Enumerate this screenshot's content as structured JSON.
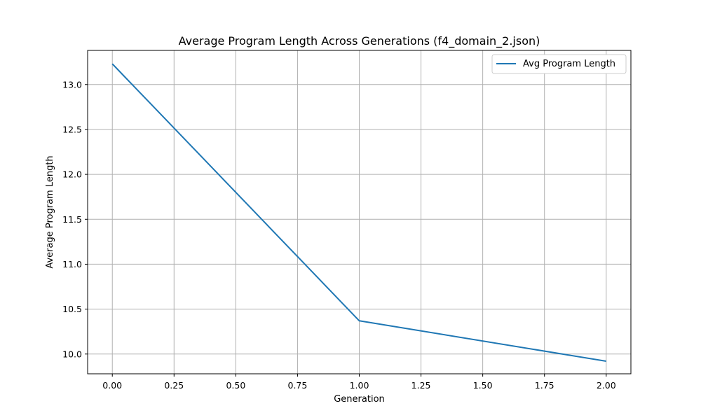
{
  "chart_data": {
    "type": "line",
    "title": "Average Program Length Across Generations (f4_domain_2.json)",
    "xlabel": "Generation",
    "ylabel": "Average Program Length",
    "xlim": [
      -0.1,
      2.1
    ],
    "ylim": [
      9.78,
      13.38
    ],
    "x_ticks": [
      0.0,
      0.25,
      0.5,
      0.75,
      1.0,
      1.25,
      1.5,
      1.75,
      2.0
    ],
    "x_tick_labels": [
      "0.00",
      "0.25",
      "0.50",
      "0.75",
      "1.00",
      "1.25",
      "1.50",
      "1.75",
      "2.00"
    ],
    "y_ticks": [
      10.0,
      10.5,
      11.0,
      11.5,
      12.0,
      12.5,
      13.0
    ],
    "y_tick_labels": [
      "10.0",
      "10.5",
      "11.0",
      "11.5",
      "12.0",
      "12.5",
      "13.0"
    ],
    "grid": true,
    "legend_position": "top-right",
    "series": [
      {
        "name": "Avg Program Length",
        "color": "#1f77b4",
        "x": [
          0,
          1,
          2
        ],
        "y": [
          13.23,
          10.37,
          9.92
        ]
      }
    ]
  }
}
